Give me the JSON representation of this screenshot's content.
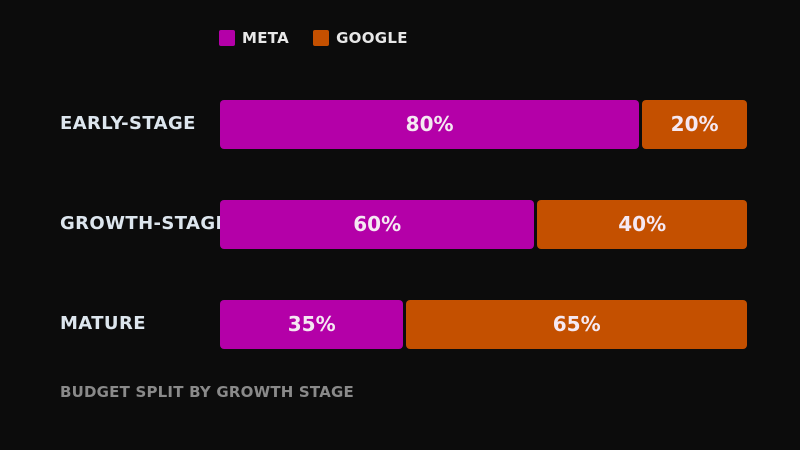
{
  "chart_data": {
    "type": "bar",
    "orientation": "horizontal",
    "stacked": true,
    "categories": [
      "EARLY-STAGE",
      "GROWTH-STAGE",
      "MATURE"
    ],
    "series": [
      {
        "name": "META",
        "values": [
          80,
          60,
          35
        ],
        "labels": [
          "80%",
          "60%",
          "35%"
        ],
        "color": "#b400a8"
      },
      {
        "name": "GOOGLE",
        "values": [
          20,
          40,
          65
        ],
        "labels": [
          "20%",
          "40%",
          "65%"
        ],
        "color": "#c45000"
      }
    ],
    "xlim": [
      0,
      100
    ],
    "unit": "%",
    "legend_position": "top",
    "grid": false,
    "caption": "BUDGET SPLIT BY GROWTH STAGE"
  },
  "colors": {
    "background": "#0c0c0c",
    "label": "#dde6ee",
    "caption": "#8a8a8a"
  }
}
